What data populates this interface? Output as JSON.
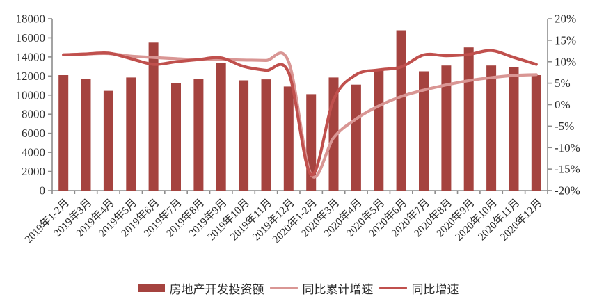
{
  "chart_data": {
    "type": "bar+line",
    "title": "",
    "categories": [
      "2019年1-2月",
      "2019年3月",
      "2019年4月",
      "2019年5月",
      "2019年6月",
      "2019年7月",
      "2019年8月",
      "2019年9月",
      "2019年10月",
      "2019年11月",
      "2019年12月",
      "2020年1-2月",
      "2020年3月",
      "2020年4月",
      "2020年5月",
      "2020年6月",
      "2020年7月",
      "2020年8月",
      "2020年9月",
      "2020年10月",
      "2020年11月",
      "2020年12月"
    ],
    "series": [
      {
        "name": "房地产开发投资额",
        "type": "bar",
        "axis": "left",
        "color": "#A5433F",
        "values": [
          12100,
          11700,
          10450,
          11850,
          15500,
          11250,
          11700,
          13400,
          11550,
          11650,
          10900,
          10100,
          11850,
          11100,
          12700,
          16800,
          12500,
          13100,
          15000,
          13100,
          12900,
          12100
        ]
      },
      {
        "name": "同比累计增速",
        "type": "line",
        "axis": "right",
        "color": "#D99694",
        "values": [
          11.6,
          11.8,
          11.9,
          11.3,
          11.0,
          10.7,
          10.5,
          10.5,
          10.4,
          10.3,
          10.0,
          -16.3,
          -7.7,
          -3.3,
          -0.3,
          1.9,
          3.4,
          4.6,
          5.6,
          6.3,
          6.8,
          7.0
        ]
      },
      {
        "name": "同比增速",
        "type": "line",
        "axis": "right",
        "color": "#C0504D",
        "values": [
          11.6,
          11.8,
          12.0,
          10.7,
          9.4,
          10.0,
          10.5,
          10.9,
          8.9,
          8.0,
          7.5,
          -16.3,
          1.2,
          7.0,
          8.1,
          8.8,
          11.6,
          11.4,
          11.7,
          12.6,
          11.0,
          9.4
        ]
      }
    ],
    "left_axis": {
      "min": 0,
      "max": 18000,
      "step": 2000,
      "labels": [
        "0",
        "2000",
        "4000",
        "6000",
        "8000",
        "10000",
        "12000",
        "14000",
        "16000",
        "18000"
      ]
    },
    "right_axis": {
      "min": -20,
      "max": 20,
      "step": 5,
      "labels": [
        "-20%",
        "-15%",
        "-10%",
        "-5%",
        "0%",
        "5%",
        "10%",
        "15%",
        "20%"
      ]
    },
    "legend_position": "bottom",
    "grid": false,
    "axis_color": "#8c8c8c",
    "text_color": "#2b2b2b"
  }
}
